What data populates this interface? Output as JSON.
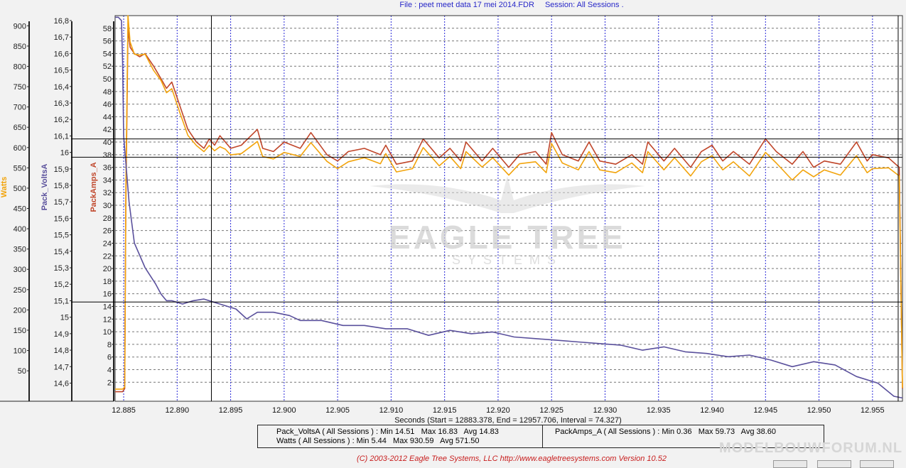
{
  "header": {
    "file_label": "File : peet meet data 17 mei 2014.FDR",
    "session_label": "Session: All Sessions ."
  },
  "colors": {
    "watts": "#f2a40c",
    "volts": "#5a509c",
    "amps": "#c0462a",
    "grid": "#2a2ad8",
    "background": "#ffffff"
  },
  "chart_data": {
    "type": "line",
    "x_axis": {
      "label": "Seconds (Start = 12883.378,  End = 12957.706,  Interval =  74.327)",
      "range": [
        12.8842,
        12.9578
      ],
      "ticks": [
        "12.885",
        "12.890",
        "12.895",
        "12.900",
        "12.905",
        "12.910",
        "12.915",
        "12.920",
        "12.925",
        "12.930",
        "12.935",
        "12.940",
        "12.945",
        "12.950",
        "12.955"
      ]
    },
    "y_axes": {
      "watts": {
        "label": "Watts",
        "range": [
          -25,
          925
        ],
        "ticks": [
          "900",
          "850",
          "800",
          "750",
          "700",
          "650",
          "600",
          "550",
          "500",
          "450",
          "400",
          "350",
          "300",
          "250",
          "200",
          "150",
          "100",
          "50"
        ]
      },
      "volts": {
        "label": "Pack_VoltsA",
        "range": [
          14.49,
          16.83
        ],
        "ticks": [
          "16,8",
          "16,7",
          "16,6",
          "16,5",
          "16,4",
          "16,3",
          "16,2",
          "16,1",
          "16",
          "15,9",
          "15,8",
          "15,7",
          "15,6",
          "15,5",
          "15,4",
          "15,3",
          "15,2",
          "15,1",
          "15",
          "14,9",
          "14,8",
          "14,7",
          "14,6"
        ]
      },
      "amps": {
        "label": "PackAmps_A",
        "range": [
          -1,
          60
        ],
        "ticks": [
          "58",
          "56",
          "54",
          "52",
          "50",
          "48",
          "46",
          "44",
          "42",
          "40",
          "38",
          "36",
          "34",
          "32",
          "30",
          "28",
          "26",
          "24",
          "22",
          "20",
          "18",
          "16",
          "14",
          "12",
          "10",
          "8",
          "6",
          "4",
          "2"
        ]
      }
    },
    "series": [
      {
        "name": "PackAmps_A",
        "axis": "amps",
        "x": [
          12.8842,
          12.8849,
          12.8851,
          12.8852,
          12.8854,
          12.8856,
          12.886,
          12.8865,
          12.887,
          12.8878,
          12.8885,
          12.889,
          12.8895,
          12.8902,
          12.891,
          12.8918,
          12.8925,
          12.893,
          12.8935,
          12.894,
          12.8945,
          12.895,
          12.896,
          12.8975,
          12.898,
          12.899,
          12.9,
          12.9015,
          12.9025,
          12.904,
          12.905,
          12.906,
          12.9075,
          12.909,
          12.9095,
          12.9105,
          12.912,
          12.913,
          12.9145,
          12.9155,
          12.9165,
          12.917,
          12.9185,
          12.9195,
          12.921,
          12.922,
          12.9235,
          12.9245,
          12.925,
          12.926,
          12.9275,
          12.9285,
          12.9295,
          12.931,
          12.9325,
          12.9335,
          12.934,
          12.9355,
          12.9365,
          12.938,
          12.939,
          12.94,
          12.941,
          12.942,
          12.9435,
          12.945,
          12.946,
          12.9475,
          12.9485,
          12.9495,
          12.9505,
          12.952,
          12.9535,
          12.9545,
          12.955,
          12.9565,
          12.9575,
          12.9578
        ],
        "y": [
          0.5,
          0.5,
          1,
          30,
          58,
          55,
          54,
          53.5,
          54,
          52,
          50,
          48.5,
          49.5,
          46,
          42,
          40,
          39,
          40.5,
          39.5,
          41,
          40,
          39,
          39.5,
          42,
          39,
          38.5,
          40,
          39,
          41.5,
          38,
          37,
          38.5,
          39,
          38,
          39.5,
          36.5,
          37,
          40.5,
          37.5,
          39,
          37,
          40,
          37,
          39,
          36,
          38,
          38.5,
          36.5,
          41.5,
          38,
          37,
          40,
          37,
          36.5,
          38,
          36.5,
          40,
          37,
          39,
          36,
          38.5,
          39.5,
          37,
          38.5,
          36.5,
          40.5,
          38.5,
          36.5,
          38.5,
          36,
          37,
          36.5,
          40,
          37,
          38,
          37.5,
          36,
          1
        ]
      },
      {
        "name": "Watts",
        "axis": "watts",
        "x": [
          12.8842,
          12.8849,
          12.8851,
          12.8852,
          12.8854,
          12.8856,
          12.886,
          12.8865,
          12.887,
          12.8878,
          12.8885,
          12.889,
          12.8895,
          12.8902,
          12.891,
          12.8918,
          12.8925,
          12.893,
          12.8935,
          12.894,
          12.8945,
          12.895,
          12.896,
          12.8975,
          12.898,
          12.899,
          12.9,
          12.9015,
          12.9025,
          12.904,
          12.905,
          12.906,
          12.9075,
          12.909,
          12.9095,
          12.9105,
          12.912,
          12.913,
          12.9145,
          12.9155,
          12.9165,
          12.917,
          12.9185,
          12.9195,
          12.921,
          12.922,
          12.9235,
          12.9245,
          12.925,
          12.926,
          12.9275,
          12.9285,
          12.9295,
          12.931,
          12.9325,
          12.9335,
          12.934,
          12.9355,
          12.9365,
          12.938,
          12.939,
          12.94,
          12.941,
          12.942,
          12.9435,
          12.945,
          12.946,
          12.9475,
          12.9485,
          12.9495,
          12.9505,
          12.952,
          12.9535,
          12.9545,
          12.955,
          12.9565,
          12.9575,
          12.9578
        ],
        "y": [
          5,
          5,
          10,
          500,
          925,
          860,
          830,
          828,
          830,
          790,
          765,
          735,
          745,
          690,
          630,
          605,
          590,
          605,
          592,
          602,
          596,
          582,
          585,
          615,
          578,
          572,
          588,
          578,
          612,
          566,
          548,
          565,
          575,
          560,
          585,
          540,
          548,
          600,
          555,
          578,
          548,
          590,
          552,
          575,
          532,
          560,
          565,
          538,
          610,
          562,
          545,
          590,
          545,
          538,
          562,
          538,
          590,
          545,
          575,
          530,
          565,
          580,
          545,
          565,
          530,
          588,
          562,
          520,
          545,
          528,
          545,
          532,
          580,
          538,
          548,
          550,
          530,
          8
        ]
      },
      {
        "name": "Pack_VoltsA",
        "axis": "volts",
        "x": [
          12.8842,
          12.8845,
          12.8848,
          12.8849,
          12.885,
          12.8855,
          12.886,
          12.887,
          12.888,
          12.8885,
          12.889,
          12.8895,
          12.8905,
          12.8915,
          12.8925,
          12.8935,
          12.894,
          12.8955,
          12.8965,
          12.8975,
          12.899,
          12.9005,
          12.9015,
          12.9035,
          12.9055,
          12.9075,
          12.9095,
          12.9115,
          12.9135,
          12.9155,
          12.9175,
          12.9195,
          12.9215,
          12.9235,
          12.9255,
          12.9275,
          12.9295,
          12.9315,
          12.9335,
          12.9355,
          12.9375,
          12.9395,
          12.9415,
          12.9435,
          12.9455,
          12.9475,
          12.9495,
          12.9515,
          12.9535,
          12.9555,
          12.957,
          12.9578
        ],
        "y": [
          16.82,
          16.82,
          16.8,
          16.55,
          16.1,
          15.7,
          15.45,
          15.3,
          15.2,
          15.14,
          15.1,
          15.1,
          15.08,
          15.1,
          15.11,
          15.09,
          15.08,
          15.05,
          14.99,
          15.03,
          15.03,
          15.01,
          14.98,
          14.98,
          14.95,
          14.95,
          14.93,
          14.93,
          14.89,
          14.92,
          14.9,
          14.91,
          14.88,
          14.87,
          14.86,
          14.85,
          14.84,
          14.83,
          14.8,
          14.82,
          14.79,
          14.78,
          14.76,
          14.77,
          14.74,
          14.7,
          14.73,
          14.71,
          14.64,
          14.6,
          14.52,
          14.51
        ]
      }
    ],
    "cursor_lines": [
      {
        "x": 12.8932
      },
      {
        "x": 12.9574
      },
      {
        "axis": "amps",
        "y": 40.5
      },
      {
        "axis": "amps",
        "y": 37.6
      },
      {
        "axis": "amps",
        "y": 14.7
      }
    ]
  },
  "watermark": {
    "line1": "EAGLE TREE",
    "line2": "SYSTEMS"
  },
  "legend": {
    "volts_stats": "Pack_VoltsA ( All Sessions ) : Min 14.51   Max 16.83   Avg 14.83",
    "watts_stats": "Watts ( All Sessions ) : Min 5.44   Max 930.59   Avg 571.50",
    "amps_stats": "PackAmps_A ( All Sessions ) : Min 0.36   Max 59.73   Avg 38.60"
  },
  "footer": {
    "copyright": "(C) 2003-2012 Eagle Tree Systems, LLC  http://www.eagletreesystems.com  Version 10.52"
  },
  "site_watermark": "MODELBOUWFORUM.NL"
}
